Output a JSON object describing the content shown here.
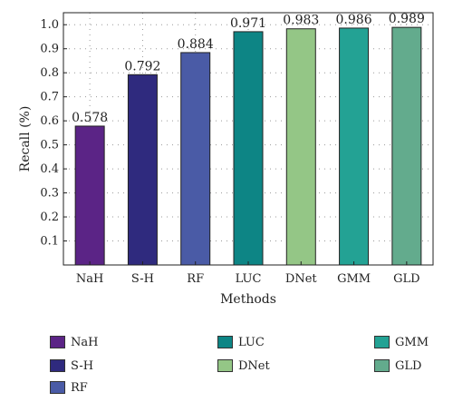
{
  "chart_data": {
    "type": "bar",
    "categories": [
      "NaH",
      "S-H",
      "RF",
      "LUC",
      "DNet",
      "GMM",
      "GLD"
    ],
    "values": [
      0.578,
      0.792,
      0.884,
      0.971,
      0.983,
      0.986,
      0.989
    ],
    "data_labels": [
      "0.578",
      "0.792",
      "0.884",
      "0.971",
      "0.983",
      "0.986",
      "0.989"
    ],
    "colors": [
      "#5b2486",
      "#2f2a7e",
      "#4a5ba6",
      "#0d8585",
      "#94c686",
      "#23a294",
      "#63ab8d"
    ],
    "xlabel": "Methods",
    "ylabel": "Recall (%)",
    "ylim": [
      0,
      1.05
    ],
    "yticks": [
      "0.1",
      "0.2",
      "0.3",
      "0.4",
      "0.5",
      "0.6",
      "0.7",
      "0.8",
      "0.9",
      "1.0"
    ],
    "grid": true,
    "legend": {
      "placement": "bottom",
      "entries": [
        "NaH",
        "S-H",
        "RF",
        "LUC",
        "DNet",
        "GMM",
        "GLD"
      ]
    }
  }
}
